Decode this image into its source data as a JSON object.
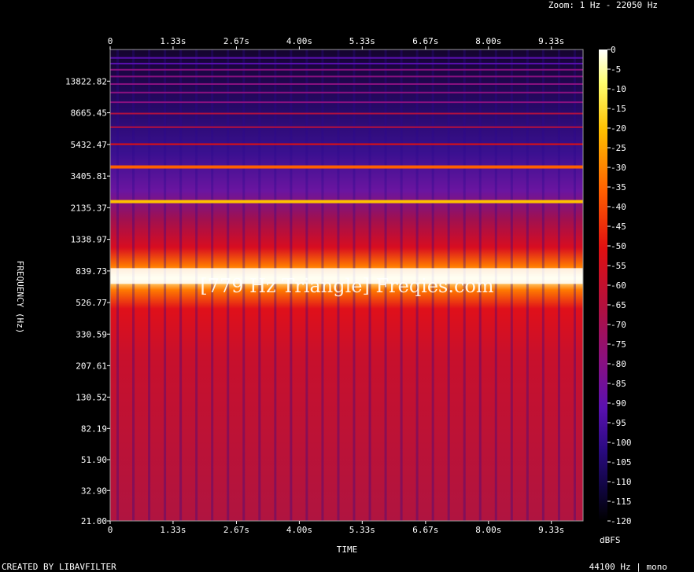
{
  "header": {
    "zoom": "Zoom: 1 Hz - 22050 Hz"
  },
  "footer": {
    "created_by": "CREATED BY LIBAVFILTER",
    "audio_info": "44100 Hz | mono"
  },
  "watermark": "[779 Hz Triangle] Freqies.com",
  "chart_data": {
    "type": "heatmap",
    "title": "",
    "xlabel": "TIME",
    "ylabel": "FREQUENCY (Hz)",
    "x_unit": "s",
    "xlim": [
      0,
      10
    ],
    "x_ticks": [
      0,
      1.33,
      2.67,
      4.0,
      5.33,
      6.67,
      8.0,
      9.33
    ],
    "x_tick_labels": [
      "0",
      "1.33s",
      "2.67s",
      "4.00s",
      "5.33s",
      "6.67s",
      "8.00s",
      "9.33s"
    ],
    "y_scale": "log",
    "ylim": [
      21.0,
      22050
    ],
    "y_ticks": [
      21.0,
      32.9,
      51.9,
      82.19,
      130.52,
      207.61,
      330.59,
      526.77,
      839.73,
      1338.97,
      2135.37,
      3405.81,
      5432.47,
      8665.45,
      13822.82
    ],
    "y_tick_labels": [
      "21.00",
      "32.90",
      "51.90",
      "82.19",
      "130.52",
      "207.61",
      "330.59",
      "526.77",
      "839.73",
      "1338.97",
      "2135.37",
      "3405.81",
      "5432.47",
      "8665.45",
      "13822.82"
    ],
    "colorbar": {
      "label": "dBFS",
      "range": [
        -120,
        0
      ],
      "ticks": [
        0,
        -5,
        -10,
        -15,
        -20,
        -25,
        -30,
        -35,
        -40,
        -45,
        -50,
        -55,
        -60,
        -65,
        -70,
        -75,
        -80,
        -85,
        -90,
        -95,
        -100,
        -105,
        -110,
        -115,
        -120
      ]
    },
    "fundamental_hz": 779,
    "harmonics": [
      {
        "freq_hz": 779,
        "level_dbfs": -3
      },
      {
        "freq_hz": 2337,
        "level_dbfs": -36
      },
      {
        "freq_hz": 3895,
        "level_dbfs": -45
      },
      {
        "freq_hz": 5453,
        "level_dbfs": -60
      },
      {
        "freq_hz": 7011,
        "level_dbfs": -75
      },
      {
        "freq_hz": 8569,
        "level_dbfs": -78
      },
      {
        "freq_hz": 10127,
        "level_dbfs": -82
      },
      {
        "freq_hz": 11685,
        "level_dbfs": -85
      },
      {
        "freq_hz": 13243,
        "level_dbfs": -87
      },
      {
        "freq_hz": 14801,
        "level_dbfs": -89
      },
      {
        "freq_hz": 16359,
        "level_dbfs": -91
      },
      {
        "freq_hz": 17917,
        "level_dbfs": -93
      },
      {
        "freq_hz": 19475,
        "level_dbfs": -95
      }
    ],
    "grid": false
  }
}
